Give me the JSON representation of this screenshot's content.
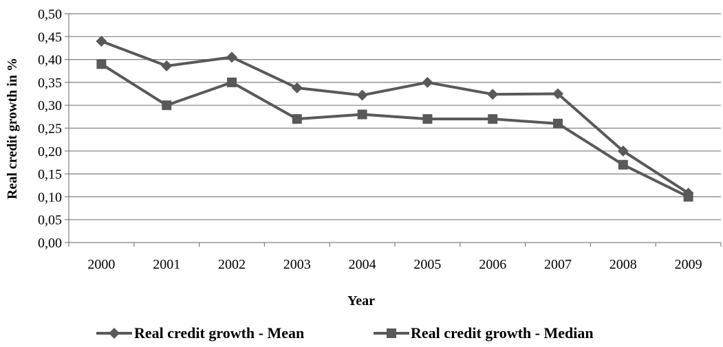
{
  "chart_data": {
    "type": "line",
    "title": "",
    "xlabel": "Year",
    "ylabel": "Real credit growth in %",
    "categories": [
      "2000",
      "2001",
      "2002",
      "2003",
      "2004",
      "2005",
      "2006",
      "2007",
      "2008",
      "2009"
    ],
    "y_ticks": [
      "0,00",
      "0,05",
      "0,10",
      "0,15",
      "0,20",
      "0,25",
      "0,30",
      "0,35",
      "0,40",
      "0,45",
      "0,50"
    ],
    "ylim": [
      0,
      0.5
    ],
    "y_step": 0.05,
    "grid": true,
    "legend_position": "bottom",
    "series": [
      {
        "name": "Real credit growth - Mean",
        "marker": "diamond",
        "color": "#595959",
        "values": [
          0.44,
          0.386,
          0.405,
          0.338,
          0.322,
          0.35,
          0.324,
          0.325,
          0.2,
          0.108
        ]
      },
      {
        "name": "Real credit growth - Median",
        "marker": "square",
        "color": "#595959",
        "values": [
          0.39,
          0.3,
          0.35,
          0.27,
          0.28,
          0.27,
          0.27,
          0.26,
          0.17,
          0.1
        ]
      }
    ]
  }
}
